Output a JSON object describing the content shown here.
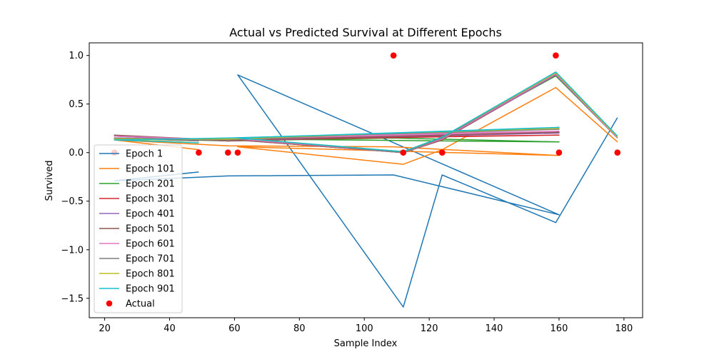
{
  "chart_data": {
    "type": "line",
    "title": "Actual vs Predicted Survival at Different Epochs",
    "xlabel": "Sample Index",
    "ylabel": "Survived",
    "xlim": [
      15.25,
      185.75
    ],
    "ylim": [
      -1.7,
      1.13
    ],
    "x_ticks": [
      20,
      40,
      60,
      80,
      100,
      120,
      140,
      160,
      180
    ],
    "y_ticks": [
      -1.5,
      -1.0,
      -0.5,
      0.0,
      0.5,
      1.0
    ],
    "x_tick_labels": [
      "20",
      "40",
      "60",
      "80",
      "100",
      "120",
      "140",
      "160",
      "180"
    ],
    "y_tick_labels": [
      "−1.5",
      "−1.0",
      "−0.5",
      "0.0",
      "0.5",
      "1.0"
    ],
    "grid": false,
    "legend_position": "lower-left",
    "x": [
      49,
      23,
      58,
      109,
      160,
      61,
      112,
      124,
      159,
      178
    ],
    "series": [
      {
        "name": "Epoch 1",
        "color": "#1f77b4",
        "values": [
          -0.2,
          -0.29,
          -0.24,
          -0.23,
          -0.64,
          0.8,
          -1.59,
          -0.23,
          -0.72,
          0.36
        ]
      },
      {
        "name": "Epoch 101",
        "color": "#ff7f0e",
        "values": [
          0.03,
          0.13,
          0.07,
          0.06,
          -0.03,
          0.06,
          -0.12,
          0.03,
          0.67,
          0.11
        ]
      },
      {
        "name": "Epoch 201",
        "color": "#2ca02c",
        "values": [
          0.12,
          0.15,
          0.12,
          0.15,
          0.11,
          0.14,
          0.01,
          0.15,
          0.79,
          0.15
        ]
      },
      {
        "name": "Epoch 301",
        "color": "#d62728",
        "values": [
          0.13,
          0.17,
          0.12,
          0.16,
          0.18,
          0.13,
          0.0,
          0.13,
          0.8,
          0.15
        ]
      },
      {
        "name": "Epoch 401",
        "color": "#9467bd",
        "values": [
          0.13,
          0.17,
          0.12,
          0.17,
          0.2,
          0.13,
          0.0,
          0.13,
          0.8,
          0.15
        ]
      },
      {
        "name": "Epoch 501",
        "color": "#8c564b",
        "values": [
          0.14,
          0.18,
          0.12,
          0.18,
          0.21,
          0.13,
          0.0,
          0.13,
          0.81,
          0.15
        ]
      },
      {
        "name": "Epoch 601",
        "color": "#e377c2",
        "values": [
          0.14,
          0.17,
          0.13,
          0.19,
          0.22,
          0.14,
          0.0,
          0.14,
          0.81,
          0.15
        ]
      },
      {
        "name": "Epoch 701",
        "color": "#7f7f7f",
        "values": [
          0.12,
          0.15,
          0.13,
          0.2,
          0.24,
          0.15,
          0.0,
          0.15,
          0.82,
          0.16
        ]
      },
      {
        "name": "Epoch 801",
        "color": "#bcbd22",
        "values": [
          0.1,
          0.14,
          0.14,
          0.2,
          0.25,
          0.15,
          0.01,
          0.16,
          0.82,
          0.16
        ]
      },
      {
        "name": "Epoch 901",
        "color": "#17becf",
        "values": [
          0.1,
          0.13,
          0.15,
          0.2,
          0.26,
          0.15,
          0.01,
          0.16,
          0.83,
          0.17
        ]
      }
    ],
    "actual": {
      "name": "Actual",
      "color": "#ff0000",
      "x": [
        23,
        49,
        58,
        61,
        109,
        112,
        124,
        159,
        160,
        178
      ],
      "values": [
        0,
        0,
        0,
        0,
        1,
        0,
        0,
        1,
        0,
        0
      ]
    }
  }
}
